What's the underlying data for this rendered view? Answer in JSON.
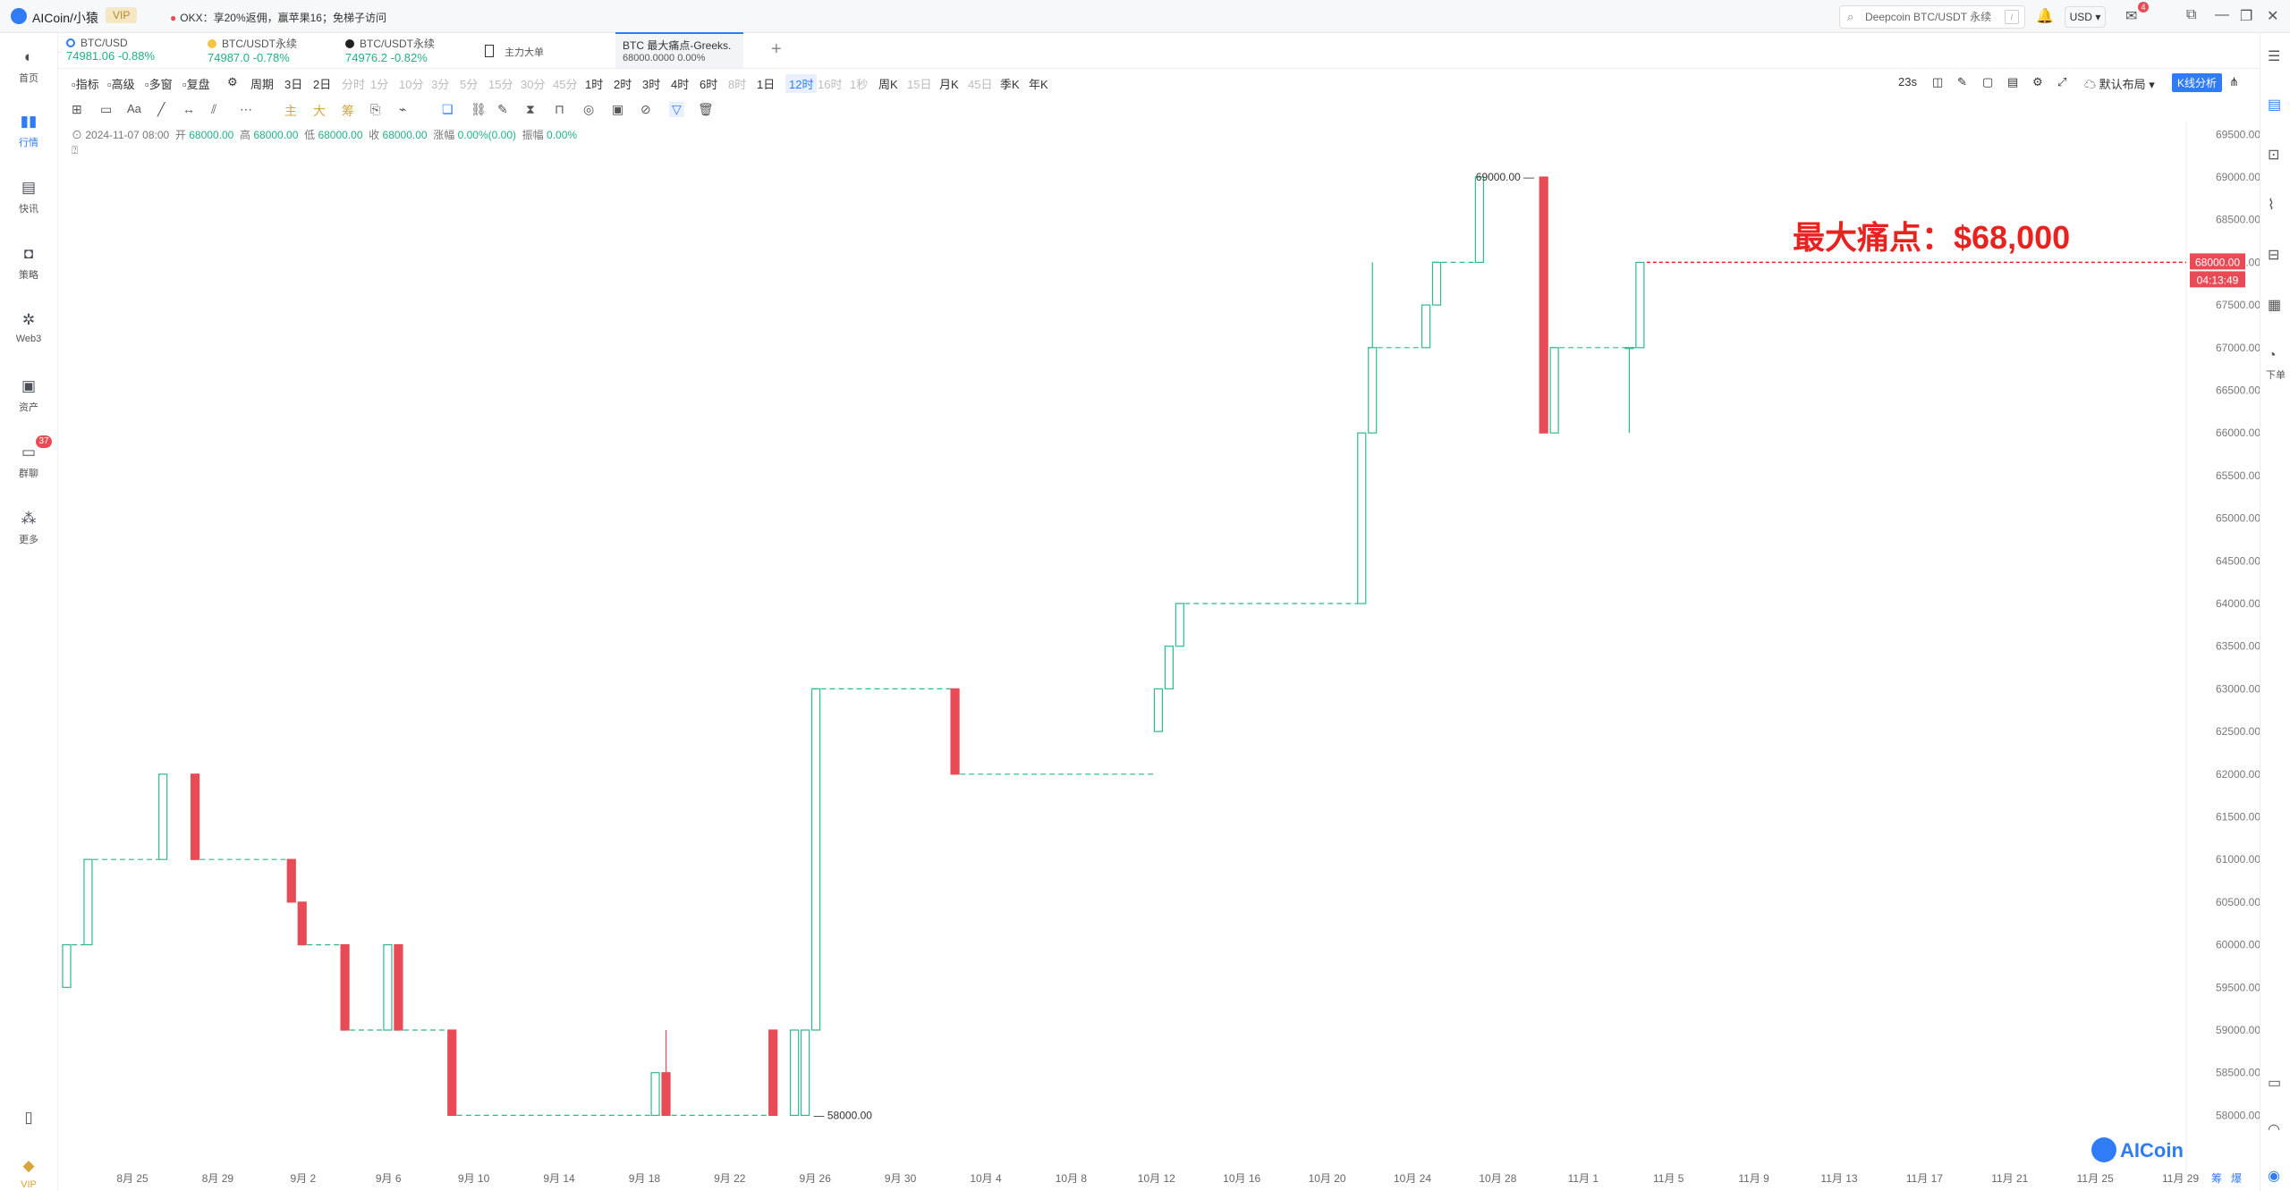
{
  "titlebar": {
    "app_title": "AICoin/小猿",
    "vip_label": "VIP",
    "notice": "OKX：享20%返佣，赢苹果16；免梯子访问",
    "search_placeholder": "Deepcoin BTC/USDT 永续",
    "search_key": "/",
    "currency": "USD",
    "mail_badge": "4"
  },
  "sidebar": {
    "items": [
      {
        "label": "首页",
        "icon": "home-icon"
      },
      {
        "label": "行情",
        "icon": "chart-bars-icon"
      },
      {
        "label": "快讯",
        "icon": "news-icon"
      },
      {
        "label": "策略",
        "icon": "robot-icon"
      },
      {
        "label": "Web3",
        "icon": "web3-icon"
      },
      {
        "label": "资产",
        "icon": "wallet-icon"
      },
      {
        "label": "群聊",
        "icon": "chat-icon",
        "badge": "37"
      },
      {
        "label": "更多",
        "icon": "grid-icon"
      }
    ],
    "bottom_vip": "VIP"
  },
  "tickers": [
    {
      "name": "BTC/USD",
      "price": "74981.06",
      "change": "-0.88%"
    },
    {
      "name": "BTC/USDT永续",
      "price": "74987.0",
      "change": "-0.78%"
    },
    {
      "name": "BTC/USDT永续",
      "price": "74976.2",
      "change": "-0.82%"
    },
    {
      "name": "主力大单",
      "price": "",
      "change": ""
    },
    {
      "name": "BTC 最大痛点-Greeks.",
      "price": "68000.0000",
      "change": "0.00%"
    }
  ],
  "toolbar": {
    "left": [
      "指标",
      "高级",
      "多窗",
      "复盘"
    ],
    "period_label": "周期",
    "periods": [
      "3日",
      "2日",
      "分时",
      "1分",
      "10分",
      "3分",
      "5分",
      "15分",
      "30分",
      "45分",
      "1时",
      "2时",
      "3时",
      "4时",
      "6时",
      "8时",
      "1日",
      "12时",
      "16时",
      "1秒",
      "周K",
      "15日",
      "月K",
      "45日",
      "季K",
      "年K"
    ],
    "dim_periods": [
      "分时",
      "1分",
      "10分",
      "3分",
      "5分",
      "15分",
      "30分",
      "45分",
      "8时",
      "16时",
      "1秒",
      "15日",
      "45日"
    ],
    "selected_period": "12时",
    "countdown": "23s",
    "layout_label": "默认布局",
    "kline_button": "K线分析"
  },
  "drawbar": {
    "text_tool": "Aa",
    "main_label": "主",
    "big_label": "大",
    "chip_label": "筹"
  },
  "ohlc": {
    "date": "2024-11-07 08:00",
    "open_label": "开",
    "open": "68000.00",
    "high_label": "高",
    "high": "68000.00",
    "low_label": "低",
    "low": "68000.00",
    "close_label": "收",
    "close": "68000.00",
    "change_label": "涨幅",
    "change": "0.00%(0.00)",
    "amp_label": "振幅",
    "amp": "0.00%"
  },
  "chart_data": {
    "type": "candlestick",
    "title": "最大痛点：$68,000",
    "y_ticks": [
      58000,
      58500,
      59000,
      59500,
      60000,
      60500,
      61000,
      61500,
      62000,
      62500,
      63000,
      63500,
      64000,
      64500,
      65000,
      65500,
      66000,
      66500,
      67000,
      67500,
      68000,
      68500,
      69000,
      69500
    ],
    "ylim": [
      57900,
      69500
    ],
    "x_ticks": [
      "8月 25",
      "8月 29",
      "9月 2",
      "9月 6",
      "9月 10",
      "9月 14",
      "9月 18",
      "9月 22",
      "9月 26",
      "9月 30",
      "10月 4",
      "10月 8",
      "10月 12",
      "10月 16",
      "10月 20",
      "10月 24",
      "10月 28",
      "11月 1",
      "11月 5",
      "11月 9",
      "11月 13",
      "11月 17",
      "11月 21",
      "11月 25",
      "11月 29"
    ],
    "current_price_label": "68000.00",
    "countdown_label": "04:13:49",
    "max_label": "69000.00",
    "min_label": "58000.00",
    "candles": [
      {
        "d": 0.0,
        "o": 59500,
        "c": 60000,
        "h": 60000,
        "l": 59500
      },
      {
        "d": 1.0,
        "o": 60000,
        "c": 61000,
        "h": 61000,
        "l": 60000
      },
      {
        "d": 4.5,
        "o": 61000,
        "c": 62000,
        "h": 62000,
        "l": 61000
      },
      {
        "d": 6.0,
        "o": 62000,
        "c": 61000,
        "h": 62000,
        "l": 61000
      },
      {
        "d": 10.5,
        "o": 61000,
        "c": 60500,
        "h": 61000,
        "l": 60500
      },
      {
        "d": 11.0,
        "o": 60500,
        "c": 60000,
        "h": 60500,
        "l": 60000
      },
      {
        "d": 13.0,
        "o": 60000,
        "c": 59000,
        "h": 60000,
        "l": 59000
      },
      {
        "d": 15.0,
        "o": 59000,
        "c": 60000,
        "h": 60000,
        "l": 59000
      },
      {
        "d": 15.5,
        "o": 60000,
        "c": 59000,
        "h": 60000,
        "l": 59000
      },
      {
        "d": 18.0,
        "o": 59000,
        "c": 58000,
        "h": 59000,
        "l": 58000
      },
      {
        "d": 27.5,
        "o": 58000,
        "c": 58500,
        "h": 58500,
        "l": 58000
      },
      {
        "d": 28.0,
        "o": 58500,
        "c": 58000,
        "h": 59000,
        "l": 58000
      },
      {
        "d": 33.0,
        "o": 59000,
        "c": 58000,
        "h": 59000,
        "l": 58000
      },
      {
        "d": 34.0,
        "o": 58000,
        "c": 59000,
        "h": 59000,
        "l": 58000
      },
      {
        "d": 34.5,
        "o": 58000,
        "c": 59000,
        "h": 59000,
        "l": 58000
      },
      {
        "d": 35.0,
        "o": 59000,
        "c": 63000,
        "h": 63000,
        "l": 59000
      },
      {
        "d": 41.5,
        "o": 63000,
        "c": 62000,
        "h": 63000,
        "l": 62000
      },
      {
        "d": 51.0,
        "o": 62500,
        "c": 63000,
        "h": 63000,
        "l": 62500
      },
      {
        "d": 51.5,
        "o": 63000,
        "c": 63500,
        "h": 63500,
        "l": 63000
      },
      {
        "d": 52.0,
        "o": 63500,
        "c": 64000,
        "h": 64000,
        "l": 63500
      },
      {
        "d": 60.5,
        "o": 64000,
        "c": 66000,
        "h": 66000,
        "l": 64000
      },
      {
        "d": 61.0,
        "o": 66000,
        "c": 67000,
        "h": 68000,
        "l": 66000
      },
      {
        "d": 63.5,
        "o": 67000,
        "c": 67500,
        "h": 67500,
        "l": 67000
      },
      {
        "d": 64.0,
        "o": 67500,
        "c": 68000,
        "h": 68000,
        "l": 67500
      },
      {
        "d": 66.0,
        "o": 68000,
        "c": 69000,
        "h": 69000,
        "l": 68000
      },
      {
        "d": 69.0,
        "o": 69000,
        "c": 66000,
        "h": 69000,
        "l": 66000
      },
      {
        "d": 69.5,
        "o": 66000,
        "c": 67000,
        "h": 67000,
        "l": 66000
      },
      {
        "d": 73.0,
        "o": 67000,
        "c": 67000,
        "h": 67000,
        "l": 66000
      },
      {
        "d": 73.5,
        "o": 67000,
        "c": 68000,
        "h": 68000,
        "l": 67000
      }
    ],
    "plateaus": [
      {
        "d0": 0.0,
        "d1": 1.0,
        "v": 60000
      },
      {
        "d0": 1.0,
        "d1": 4.5,
        "v": 61000
      },
      {
        "d0": 6.0,
        "d1": 10.5,
        "v": 61000
      },
      {
        "d0": 11.0,
        "d1": 13.0,
        "v": 60000
      },
      {
        "d0": 13.0,
        "d1": 15.0,
        "v": 59000
      },
      {
        "d0": 15.5,
        "d1": 18.0,
        "v": 59000
      },
      {
        "d0": 18.0,
        "d1": 33.0,
        "v": 58000
      },
      {
        "d0": 35.0,
        "d1": 41.5,
        "v": 63000
      },
      {
        "d0": 41.5,
        "d1": 51.0,
        "v": 62000
      },
      {
        "d0": 52.0,
        "d1": 60.5,
        "v": 64000
      },
      {
        "d0": 61.0,
        "d1": 63.5,
        "v": 67000
      },
      {
        "d0": 64.0,
        "d1": 66.0,
        "v": 68000
      },
      {
        "d0": 69.5,
        "d1": 73.5,
        "v": 67000
      }
    ],
    "up_color": "#2fb98f",
    "down_color": "#e84b55",
    "annotation_color": "#e8231f"
  },
  "right_panel_icons": [
    "orderbook-icon",
    "list-icon",
    "calc-icon",
    "depth-icon",
    "indicator-icon",
    "card-icon",
    "order-icon",
    "window-icon",
    "alarm-icon"
  ],
  "right_panel_label": "下单",
  "watermark": "AICoin",
  "bottom_right_tabs": [
    "筹",
    "爆"
  ]
}
